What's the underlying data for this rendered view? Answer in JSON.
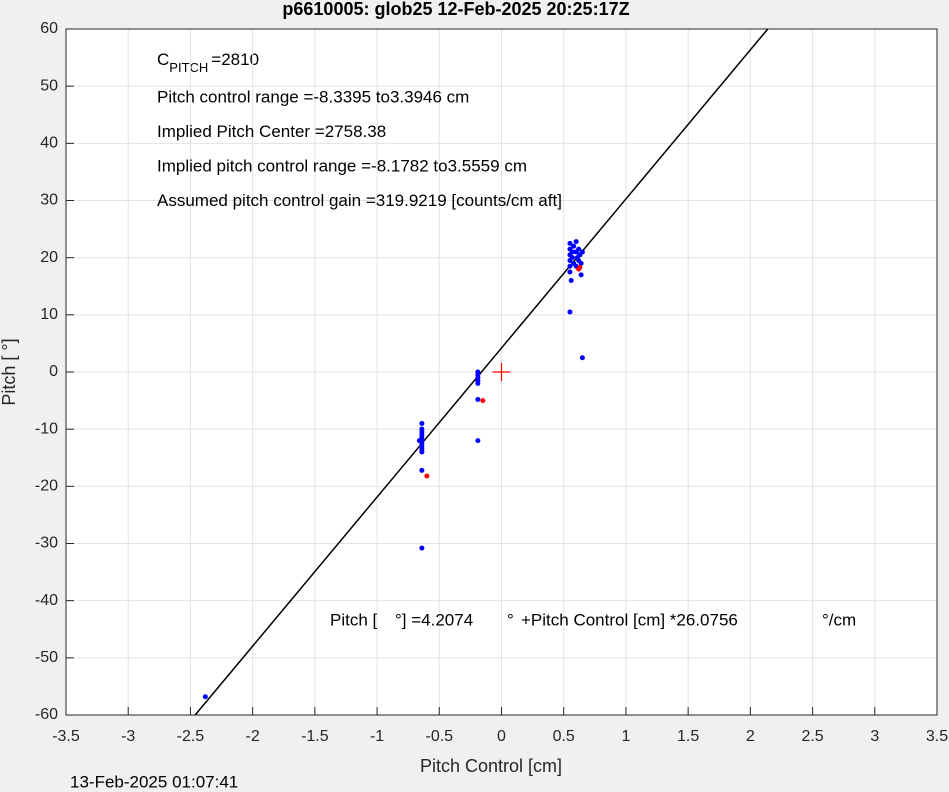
{
  "chart_data": {
    "type": "scatter",
    "title": "p6610005: glob25 12-Feb-2025 20:25:17Z",
    "x_label": "Pitch Control [cm]",
    "y_label": "Pitch [ °]",
    "footer": "13-Feb-2025 01:07:41",
    "annotations": {
      "c_symbol": "C",
      "c_subscript": "PITCH",
      "c_value": "=2810",
      "lines": [
        "Pitch control range =-8.3395 to3.3946 cm",
        "Implied Pitch Center =2758.38",
        "Implied pitch control range =-8.1782 to3.5559 cm",
        "Assumed pitch control gain =319.9219 [counts/cm aft]"
      ],
      "fit_parts": [
        "Pitch [",
        "°] =4.2074",
        "°",
        "+Pitch Control [cm] *26.0756",
        "°/cm"
      ]
    },
    "xlim": [
      -3.5,
      3.5
    ],
    "ylim": [
      -60,
      60
    ],
    "xticks": [
      -3.5,
      -3,
      -2.5,
      -2,
      -1.5,
      -1,
      -0.5,
      0,
      0.5,
      1,
      1.5,
      2,
      2.5,
      3,
      3.5
    ],
    "yticks": [
      -60,
      -50,
      -40,
      -30,
      -20,
      -10,
      0,
      10,
      20,
      30,
      40,
      50,
      60
    ],
    "grid": true,
    "series": [
      {
        "color": "#0000ff",
        "marker": "dot",
        "x": [
          -2.38,
          -0.64,
          -0.64,
          -0.64,
          -0.64,
          -0.64,
          -0.64,
          -0.64,
          -0.64,
          -0.64,
          -0.64,
          -0.64,
          -0.64,
          -0.66,
          -0.19,
          -0.19,
          -0.19,
          -0.19,
          -0.19,
          -0.19,
          -0.19,
          0.55,
          0.55,
          0.55,
          0.55,
          0.55,
          0.55,
          0.56,
          0.55,
          0.57,
          0.57,
          0.58,
          0.6,
          0.6,
          0.61,
          0.62,
          0.62,
          0.63,
          0.64,
          0.64,
          0.65,
          0.6,
          0.58,
          0.65
        ],
        "y": [
          -56.8,
          -9,
          -10,
          -10.5,
          -11,
          -11.5,
          -12,
          -12.5,
          -13,
          -13.5,
          -14,
          -17.2,
          -30.8,
          -12,
          0,
          -0.5,
          -1,
          -1.5,
          -2,
          -4.8,
          -12,
          22.5,
          21.5,
          20.5,
          19.5,
          18.5,
          17.5,
          16,
          10.5,
          21,
          20,
          19,
          22.8,
          21,
          20,
          19.5,
          21.5,
          20.5,
          19,
          17,
          2.5,
          18.5,
          22,
          21
        ]
      },
      {
        "color": "#ff0000",
        "marker": "dot",
        "x": [
          -0.6,
          -0.15,
          0.63,
          0.62
        ],
        "y": [
          -18.2,
          -5,
          18.3,
          18
        ]
      },
      {
        "color": "#ff0000",
        "marker": "plus",
        "x": [
          0
        ],
        "y": [
          0
        ]
      },
      {
        "color": "#000000",
        "marker": "line",
        "x": [
          -2.462,
          2.14
        ],
        "y": [
          -60,
          60
        ]
      }
    ]
  }
}
